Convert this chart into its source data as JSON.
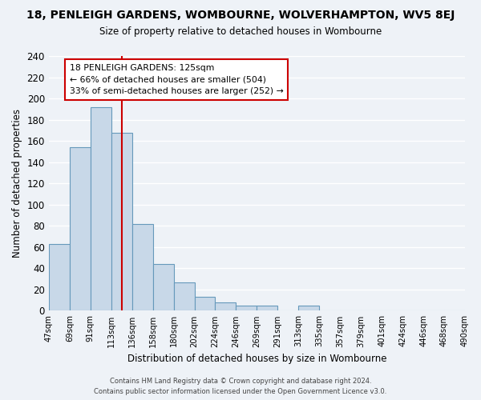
{
  "title": "18, PENLEIGH GARDENS, WOMBOURNE, WOLVERHAMPTON, WV5 8EJ",
  "subtitle": "Size of property relative to detached houses in Wombourne",
  "xlabel": "Distribution of detached houses by size in Wombourne",
  "ylabel": "Number of detached properties",
  "bar_color": "#c8d8e8",
  "bar_edge_color": "#6699bb",
  "tick_labels": [
    "47sqm",
    "69sqm",
    "91sqm",
    "113sqm",
    "136sqm",
    "158sqm",
    "180sqm",
    "202sqm",
    "224sqm",
    "246sqm",
    "269sqm",
    "291sqm",
    "313sqm",
    "335sqm",
    "357sqm",
    "379sqm",
    "401sqm",
    "424sqm",
    "446sqm",
    "468sqm",
    "490sqm"
  ],
  "values": [
    63,
    154,
    192,
    168,
    82,
    44,
    27,
    13,
    8,
    5,
    5,
    0,
    5,
    0,
    0,
    0,
    0,
    0,
    0,
    0
  ],
  "ylim": [
    0,
    240
  ],
  "yticks": [
    0,
    20,
    40,
    60,
    80,
    100,
    120,
    140,
    160,
    180,
    200,
    220,
    240
  ],
  "vline_color": "#cc0000",
  "vline_index": 3.5,
  "annotation_title": "18 PENLEIGH GARDENS: 125sqm",
  "annotation_line1": "← 66% of detached houses are smaller (504)",
  "annotation_line2": "33% of semi-detached houses are larger (252) →",
  "annotation_box_color": "#ffffff",
  "annotation_box_edge": "#cc0000",
  "footer1": "Contains HM Land Registry data © Crown copyright and database right 2024.",
  "footer2": "Contains public sector information licensed under the Open Government Licence v3.0.",
  "background_color": "#eef2f7",
  "grid_color": "#ffffff"
}
